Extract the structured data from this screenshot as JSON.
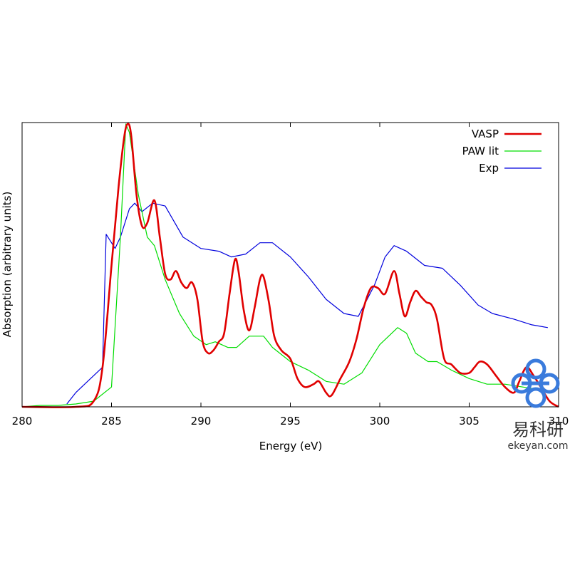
{
  "chart_data": {
    "type": "line",
    "title": "",
    "xlabel": "Energy (eV)",
    "ylabel": "Absorption (arbitrary units)",
    "xlim": [
      280,
      310
    ],
    "ylim": [
      0,
      1
    ],
    "x_ticks": [
      280,
      285,
      290,
      295,
      300,
      305,
      310
    ],
    "y_ticks": [],
    "grid": false,
    "legend_position": "top-right",
    "series": [
      {
        "name": "VASP",
        "color": "#e00000",
        "points": [
          [
            280,
            0
          ],
          [
            283,
            0
          ],
          [
            284,
            0.02
          ],
          [
            284.5,
            0.14
          ],
          [
            285,
            0.5
          ],
          [
            285.4,
            0.78
          ],
          [
            285.7,
            0.95
          ],
          [
            285.9,
            1.0
          ],
          [
            286.1,
            0.96
          ],
          [
            286.4,
            0.75
          ],
          [
            286.7,
            0.64
          ],
          [
            287,
            0.65
          ],
          [
            287.4,
            0.73
          ],
          [
            287.7,
            0.6
          ],
          [
            288,
            0.47
          ],
          [
            288.3,
            0.45
          ],
          [
            288.6,
            0.48
          ],
          [
            288.9,
            0.44
          ],
          [
            289.2,
            0.42
          ],
          [
            289.5,
            0.44
          ],
          [
            289.8,
            0.38
          ],
          [
            290.1,
            0.23
          ],
          [
            290.4,
            0.19
          ],
          [
            290.7,
            0.2
          ],
          [
            291,
            0.23
          ],
          [
            291.3,
            0.26
          ],
          [
            291.6,
            0.4
          ],
          [
            291.9,
            0.52
          ],
          [
            292.1,
            0.48
          ],
          [
            292.4,
            0.34
          ],
          [
            292.7,
            0.27
          ],
          [
            293,
            0.35
          ],
          [
            293.3,
            0.45
          ],
          [
            293.5,
            0.46
          ],
          [
            293.8,
            0.37
          ],
          [
            294.1,
            0.25
          ],
          [
            294.5,
            0.2
          ],
          [
            295,
            0.17
          ],
          [
            295.4,
            0.1
          ],
          [
            295.8,
            0.07
          ],
          [
            296.3,
            0.08
          ],
          [
            296.6,
            0.09
          ],
          [
            297,
            0.05
          ],
          [
            297.3,
            0.04
          ],
          [
            297.8,
            0.1
          ],
          [
            298.3,
            0.16
          ],
          [
            298.7,
            0.24
          ],
          [
            299.1,
            0.35
          ],
          [
            299.5,
            0.42
          ],
          [
            299.9,
            0.42
          ],
          [
            300.3,
            0.4
          ],
          [
            300.8,
            0.48
          ],
          [
            301.1,
            0.4
          ],
          [
            301.4,
            0.32
          ],
          [
            301.7,
            0.37
          ],
          [
            302,
            0.41
          ],
          [
            302.3,
            0.39
          ],
          [
            302.6,
            0.37
          ],
          [
            302.9,
            0.36
          ],
          [
            303.2,
            0.31
          ],
          [
            303.6,
            0.17
          ],
          [
            304,
            0.15
          ],
          [
            304.5,
            0.12
          ],
          [
            305,
            0.12
          ],
          [
            305.3,
            0.14
          ],
          [
            305.6,
            0.16
          ],
          [
            306,
            0.15
          ],
          [
            306.5,
            0.11
          ],
          [
            307,
            0.07
          ],
          [
            307.5,
            0.05
          ],
          [
            307.8,
            0.09
          ],
          [
            308.2,
            0.14
          ],
          [
            308.6,
            0.11
          ],
          [
            309,
            0.07
          ],
          [
            309.5,
            0.02
          ],
          [
            310,
            0
          ]
        ]
      },
      {
        "name": "PAW lit",
        "color": "#00dd00",
        "points": [
          [
            280,
            0
          ],
          [
            281,
            0.005
          ],
          [
            282,
            0.005
          ],
          [
            283,
            0.01
          ],
          [
            284,
            0.02
          ],
          [
            285,
            0.07
          ],
          [
            285.5,
            0.6
          ],
          [
            285.8,
            1.0
          ],
          [
            286,
            0.97
          ],
          [
            286.5,
            0.75
          ],
          [
            287,
            0.6
          ],
          [
            287.4,
            0.57
          ],
          [
            288,
            0.45
          ],
          [
            288.8,
            0.33
          ],
          [
            289.6,
            0.25
          ],
          [
            290.3,
            0.22
          ],
          [
            290.8,
            0.23
          ],
          [
            291.5,
            0.21
          ],
          [
            292,
            0.21
          ],
          [
            292.7,
            0.25
          ],
          [
            293.5,
            0.25
          ],
          [
            294,
            0.21
          ],
          [
            295,
            0.16
          ],
          [
            296,
            0.13
          ],
          [
            297,
            0.09
          ],
          [
            298,
            0.08
          ],
          [
            299,
            0.12
          ],
          [
            300,
            0.22
          ],
          [
            301,
            0.28
          ],
          [
            301.5,
            0.26
          ],
          [
            302,
            0.19
          ],
          [
            302.7,
            0.16
          ],
          [
            303.2,
            0.16
          ],
          [
            304,
            0.13
          ],
          [
            305,
            0.1
          ],
          [
            306,
            0.08
          ],
          [
            307,
            0.08
          ],
          [
            308,
            0.07
          ],
          [
            309,
            0.06
          ]
        ]
      },
      {
        "name": "Exp",
        "color": "#0000dd",
        "points": [
          [
            282.5,
            0.01
          ],
          [
            283,
            0.05
          ],
          [
            283.5,
            0.08
          ],
          [
            284.5,
            0.14
          ],
          [
            284.7,
            0.61
          ],
          [
            285,
            0.58
          ],
          [
            285.2,
            0.56
          ],
          [
            285.5,
            0.6
          ],
          [
            286,
            0.7
          ],
          [
            286.3,
            0.72
          ],
          [
            286.7,
            0.69
          ],
          [
            287.3,
            0.72
          ],
          [
            288,
            0.71
          ],
          [
            289,
            0.6
          ],
          [
            290,
            0.56
          ],
          [
            291,
            0.55
          ],
          [
            291.7,
            0.53
          ],
          [
            292.5,
            0.54
          ],
          [
            293.3,
            0.58
          ],
          [
            294,
            0.58
          ],
          [
            295,
            0.53
          ],
          [
            296,
            0.46
          ],
          [
            297,
            0.38
          ],
          [
            298,
            0.33
          ],
          [
            298.8,
            0.32
          ],
          [
            299.7,
            0.43
          ],
          [
            300.3,
            0.53
          ],
          [
            300.8,
            0.57
          ],
          [
            301.5,
            0.55
          ],
          [
            302.5,
            0.5
          ],
          [
            303.5,
            0.49
          ],
          [
            304.5,
            0.43
          ],
          [
            305.5,
            0.36
          ],
          [
            306.3,
            0.33
          ],
          [
            307.5,
            0.31
          ],
          [
            308.5,
            0.29
          ],
          [
            309.4,
            0.28
          ]
        ]
      }
    ]
  },
  "watermark": {
    "brand_text": "易科研",
    "site_text": "ekeyan.com",
    "logo_color": "#3a7bdc"
  }
}
